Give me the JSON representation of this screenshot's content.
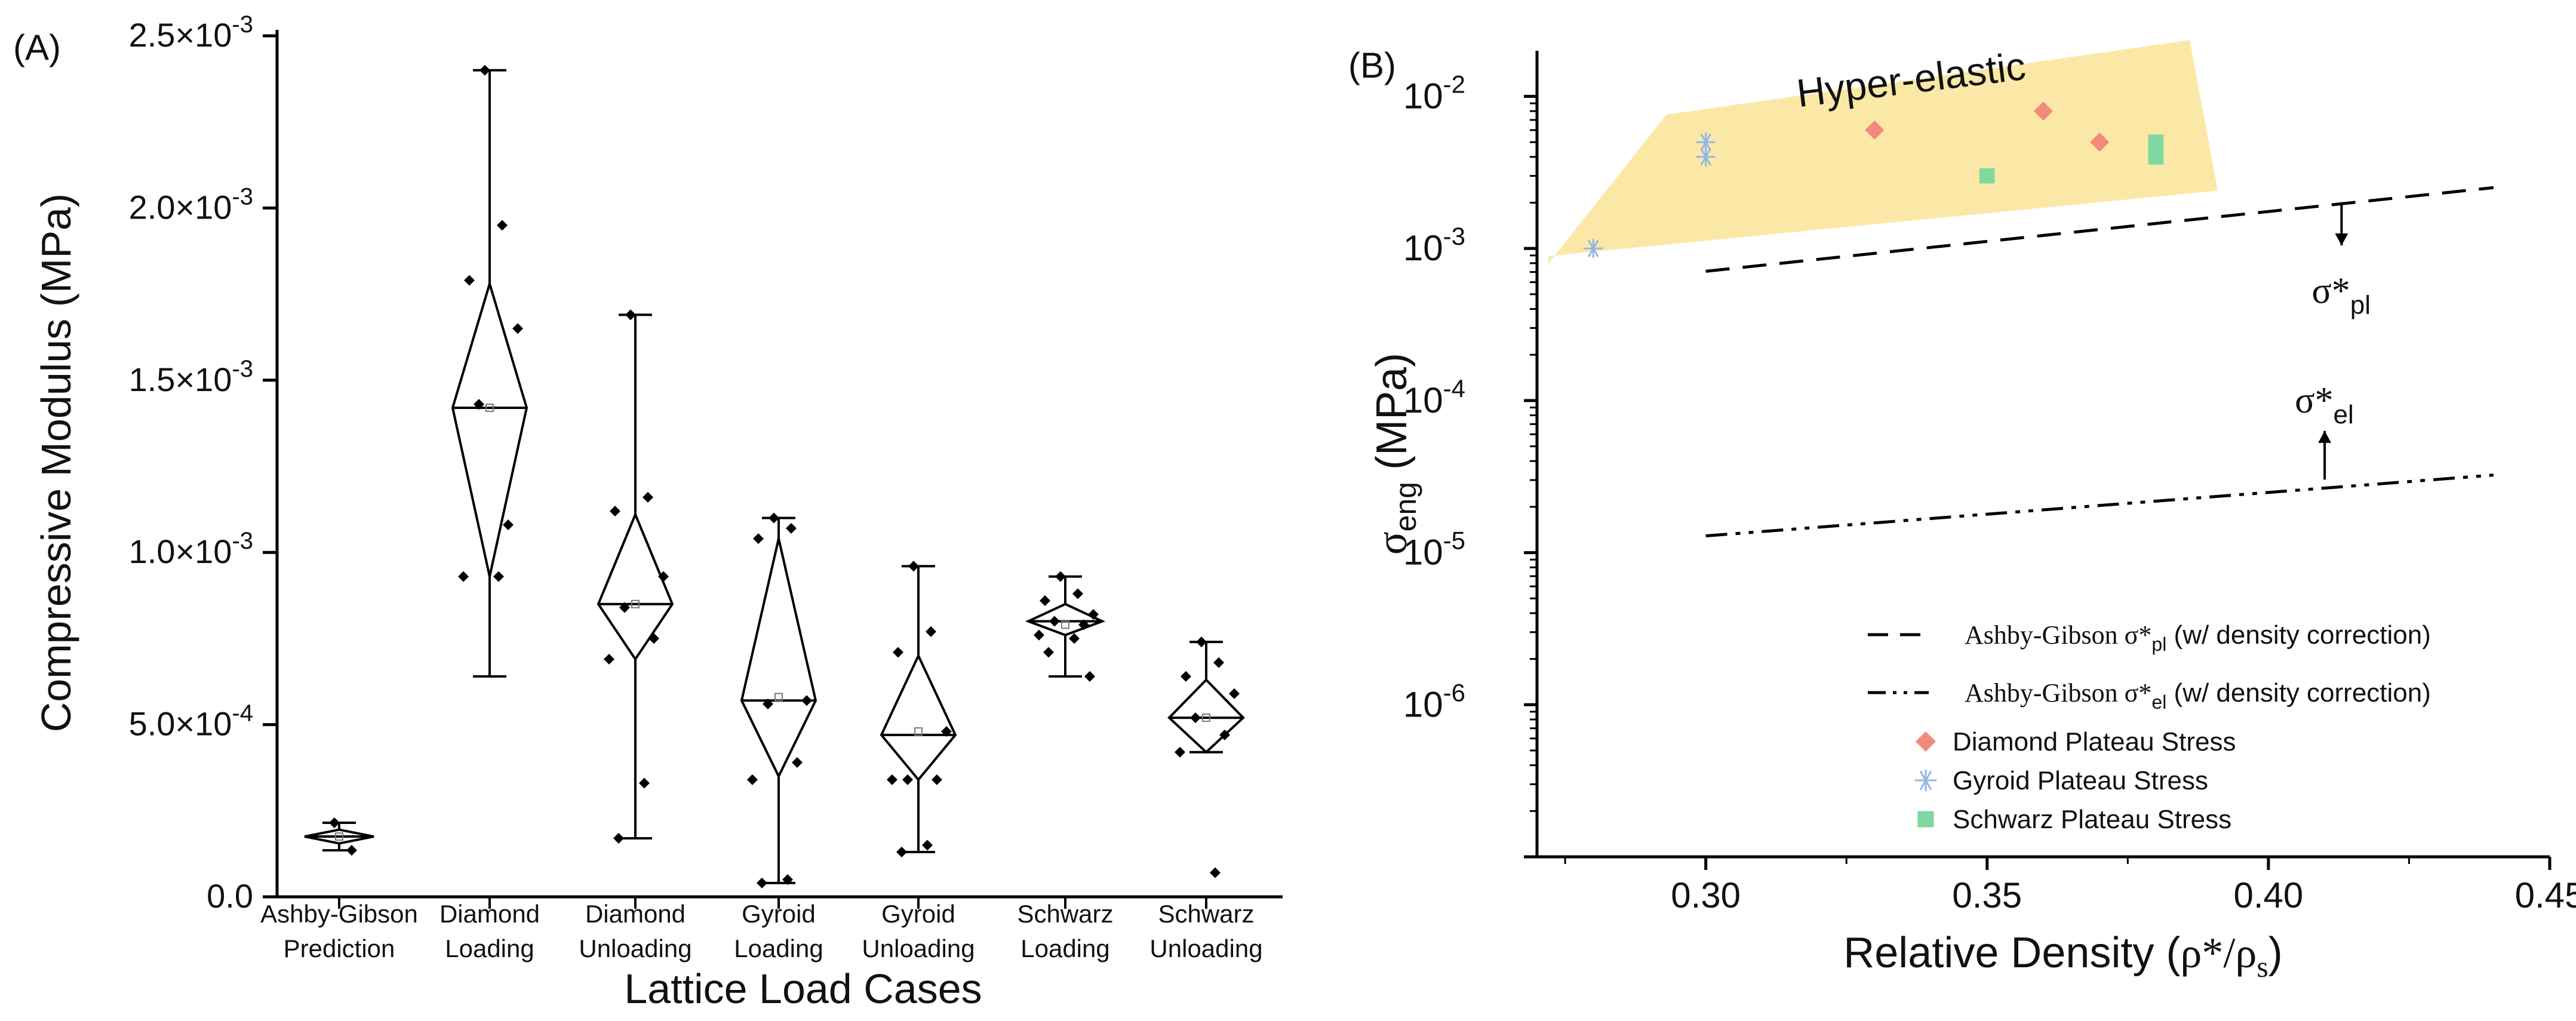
{
  "chart_data": [
    {
      "type": "box",
      "panel_label": "(A)",
      "xlabel": "Lattice Load Cases",
      "ylabel": "Compressive Modulus (MPa)",
      "ylim": [
        0,
        0.0025
      ],
      "yticks": [
        {
          "value": 0,
          "label": "0.0"
        },
        {
          "value": 0.0005,
          "label": "5.0×10-4",
          "mant": "5.0×10",
          "exp": "-4"
        },
        {
          "value": 0.001,
          "label": "1.0×10-3",
          "mant": "1.0×10",
          "exp": "-3"
        },
        {
          "value": 0.0015,
          "label": "1.5×10-3",
          "mant": "1.5×10",
          "exp": "-3"
        },
        {
          "value": 0.002,
          "label": "2.0×10-3",
          "mant": "2.0×10",
          "exp": "-3"
        },
        {
          "value": 0.0025,
          "label": "2.5×10-3",
          "mant": "2.5×10",
          "exp": "-3"
        }
      ],
      "categories": [
        {
          "line1": "Ashby-Gibson",
          "line2": "Prediction",
          "min": 0.000135,
          "max": 0.000215,
          "q1": 0.000155,
          "median": 0.000175,
          "q3": 0.000195,
          "mean": 0.000175,
          "points": [
            0.000215,
            0.000135
          ]
        },
        {
          "line1": "Diamond",
          "line2": "Loading",
          "min": 0.00064,
          "max": 0.0024,
          "q1": 0.00093,
          "median": 0.00142,
          "q3": 0.00178,
          "mean": 0.00142,
          "points": [
            0.0024,
            0.00195,
            0.00179,
            0.00165,
            0.00143,
            0.00108,
            0.00093,
            0.00093
          ]
        },
        {
          "line1": "Diamond",
          "line2": "Unloading",
          "min": 0.00017,
          "max": 0.00169,
          "q1": 0.00069,
          "median": 0.00085,
          "q3": 0.00111,
          "mean": 0.00085,
          "points": [
            0.00169,
            0.00116,
            0.00112,
            0.00093,
            0.00084,
            0.00075,
            0.00069,
            0.00033,
            0.00017
          ]
        },
        {
          "line1": "Gyroid",
          "line2": "Loading",
          "min": 4e-05,
          "max": 0.0011,
          "q1": 0.00035,
          "median": 0.00057,
          "q3": 0.00104,
          "mean": 0.00058,
          "points": [
            0.0011,
            0.00107,
            0.00104,
            0.00057,
            0.00056,
            0.00039,
            0.00034,
            5e-05,
            4e-05
          ]
        },
        {
          "line1": "Gyroid",
          "line2": "Unloading",
          "min": 0.00013,
          "max": 0.00096,
          "q1": 0.00034,
          "median": 0.00047,
          "q3": 0.0007,
          "mean": 0.00048,
          "points": [
            0.00096,
            0.00077,
            0.00071,
            0.00048,
            0.00034,
            0.00034,
            0.00034,
            0.00015,
            0.00013
          ]
        },
        {
          "line1": "Schwarz",
          "line2": "Loading",
          "min": 0.00064,
          "max": 0.00093,
          "q1": 0.00076,
          "median": 0.0008,
          "q3": 0.00085,
          "mean": 0.00079,
          "points": [
            0.00093,
            0.00088,
            0.00086,
            0.00082,
            0.0008,
            0.00079,
            0.00076,
            0.00075,
            0.00071,
            0.00064
          ]
        },
        {
          "line1": "Schwarz",
          "line2": "Unloading",
          "min": 0.00042,
          "max": 0.00074,
          "q1": 0.00042,
          "median": 0.00052,
          "q3": 0.00063,
          "mean": 0.00052,
          "points": [
            0.00074,
            0.00068,
            0.00064,
            0.00059,
            0.00052,
            0.00047,
            0.00042,
            7e-05
          ]
        }
      ]
    },
    {
      "type": "scatter",
      "panel_label": "(B)",
      "xlabel_main": "Relative Density (",
      "xlabel_rho": "ρ*/ρ",
      "xlabel_sub": "s",
      "xlabel_close": ")",
      "ylabel_main": "σ",
      "ylabel_sub": "eng",
      "ylabel_unit": " (MPa)",
      "xlim": [
        0.27,
        0.45
      ],
      "ylim_log10": [
        -7,
        -1.7
      ],
      "xticks": [
        {
          "value": 0.3,
          "label": "0.30"
        },
        {
          "value": 0.35,
          "label": "0.35"
        },
        {
          "value": 0.4,
          "label": "0.40"
        },
        {
          "value": 0.45,
          "label": "0.45"
        }
      ],
      "yticks": [
        {
          "value": -6,
          "base": "10",
          "exp": "-6"
        },
        {
          "value": -5,
          "base": "10",
          "exp": "-5"
        },
        {
          "value": -4,
          "base": "10",
          "exp": "-4"
        },
        {
          "value": -3,
          "base": "10",
          "exp": "-3"
        },
        {
          "value": -2,
          "base": "10",
          "exp": "-2"
        }
      ],
      "region": {
        "label": "Hyper-elastic",
        "color": "#fbe8a6",
        "polygon": [
          [
            0.272,
            -3.1
          ],
          [
            0.293,
            -2.12
          ],
          [
            0.386,
            -1.63
          ],
          [
            0.391,
            -2.62
          ],
          [
            0.272,
            -3.05
          ]
        ]
      },
      "lines": [
        {
          "name": "Ashby-Gibson σ*pl (w/ density correction)",
          "legend_pre": "Ashby-Gibson σ*",
          "legend_sub": "pl",
          "legend_post": " (w/ density correction)",
          "style": "dash",
          "x": [
            0.3,
            0.44
          ],
          "y": [
            -3.15,
            -2.6
          ]
        },
        {
          "name": "Ashby-Gibson σ*el (w/ density correction)",
          "legend_pre": "Ashby-Gibson σ*",
          "legend_sub": "el",
          "legend_post": " (w/ density correction)",
          "style": "dashdotdot",
          "x": [
            0.3,
            0.44
          ],
          "y": [
            -4.89,
            -4.49
          ]
        }
      ],
      "series": [
        {
          "name": "Diamond Plateau Stress",
          "marker": "diamond",
          "color": "#f08a7b",
          "x": [
            0.33,
            0.36,
            0.37
          ],
          "y": [
            0.006,
            0.008,
            0.005
          ]
        },
        {
          "name": "Gyroid Plateau Stress",
          "marker": "asterisk",
          "color": "#8fb7e5",
          "x": [
            0.28,
            0.3,
            0.3
          ],
          "y": [
            0.001,
            0.005,
            0.004
          ]
        },
        {
          "name": "Schwarz Plateau Stress",
          "marker": "square",
          "color": "#7ed8a0",
          "x": [
            0.35,
            0.38,
            0.38
          ],
          "y": [
            0.003,
            0.005,
            0.004
          ]
        }
      ],
      "annotations": [
        {
          "sym": "σ*",
          "sub": "pl",
          "x": 0.413,
          "y": -3.28,
          "arrow_from": -2.7,
          "arrow_to": -2.98
        },
        {
          "sym": "σ*",
          "sub": "el",
          "x": 0.41,
          "y": -4.0,
          "arrow_from": -4.52,
          "arrow_to": -4.2
        }
      ]
    }
  ]
}
